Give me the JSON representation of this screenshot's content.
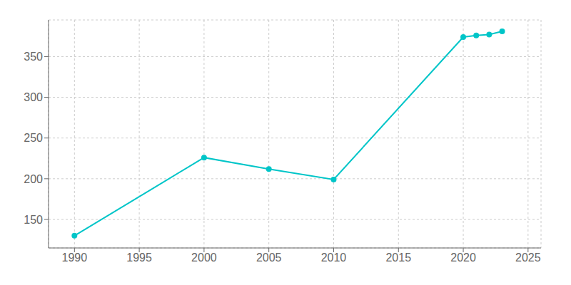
{
  "chart_data": {
    "type": "line",
    "x": [
      1990,
      2000,
      2005,
      2010,
      2020,
      2021,
      2022,
      2023
    ],
    "values": [
      130,
      226,
      212,
      199,
      374,
      376,
      377,
      381
    ],
    "color": "#00C5C8",
    "marker": "circle",
    "xlim": [
      1988,
      2026
    ],
    "ylim": [
      115,
      395
    ],
    "xticks": [
      1990,
      1995,
      2000,
      2005,
      2010,
      2015,
      2020,
      2025
    ],
    "yticks": [
      150,
      200,
      250,
      300,
      350
    ],
    "grid": true
  }
}
